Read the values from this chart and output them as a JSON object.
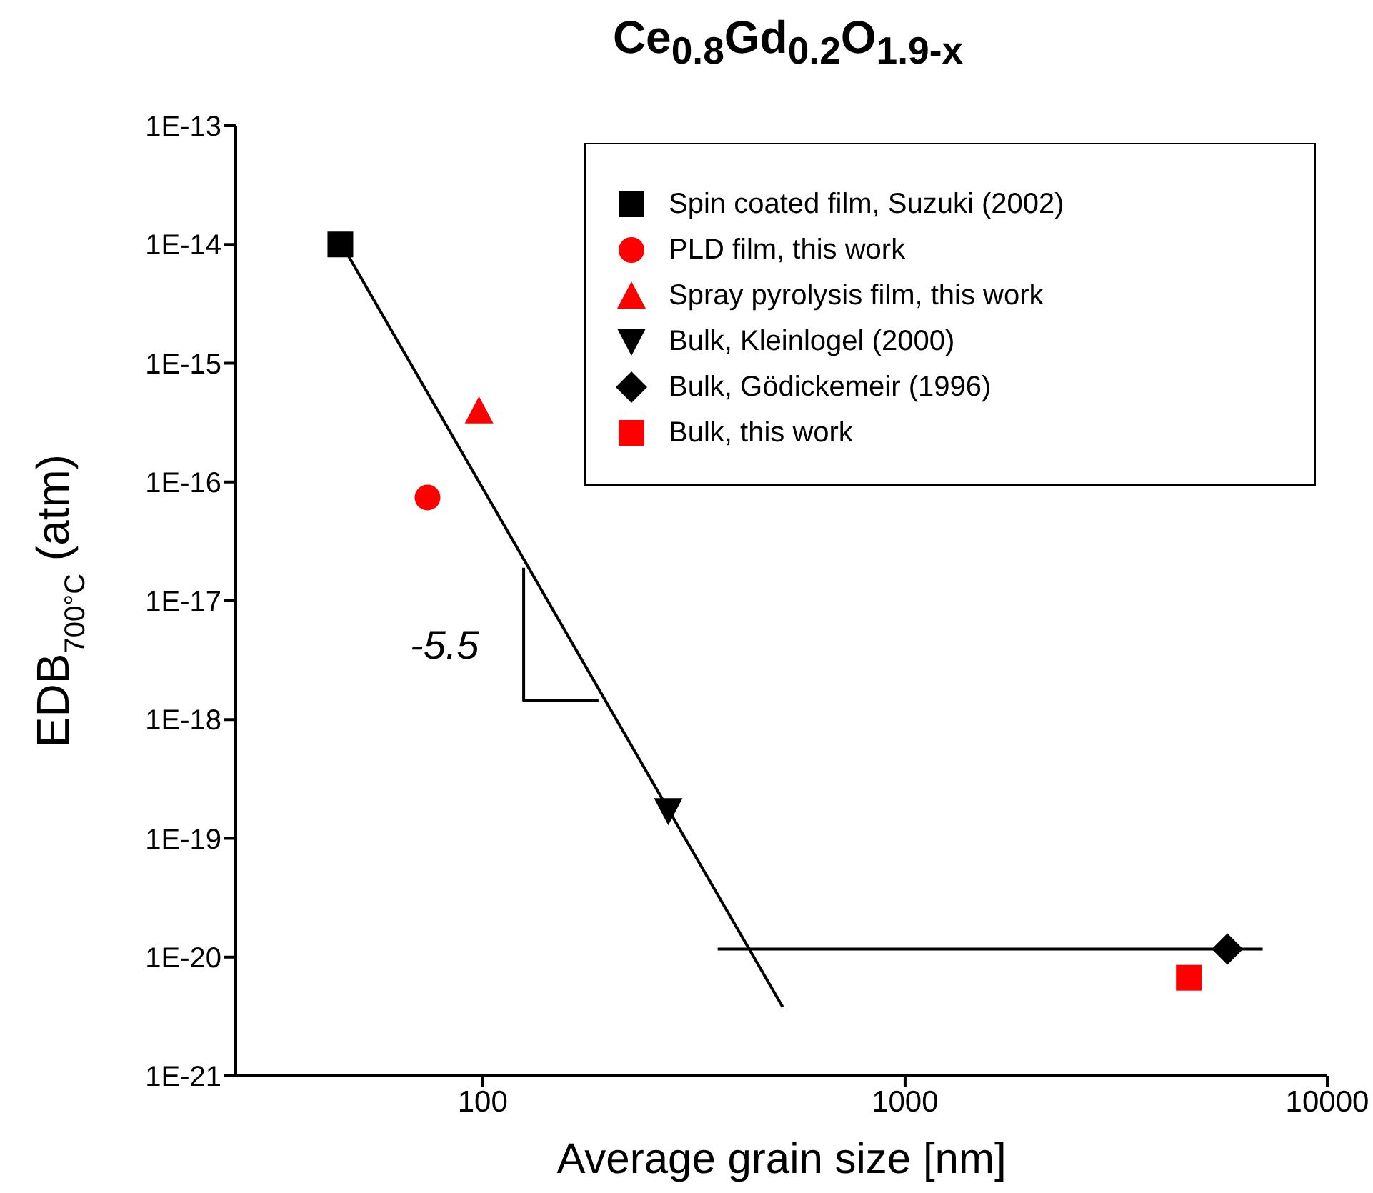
{
  "chart_data": {
    "type": "scatter",
    "title": "Ce$_{0.8}$Gd$_{0.2}$O$_{1.9-x}$",
    "xlabel": "Average grain size [nm]",
    "ylabel": "EDB$_{700°C}$ (atm)",
    "log": "xy",
    "legend": "top right",
    "xlim": [
      26,
      10000
    ],
    "xticks": [
      100,
      1000,
      10000
    ],
    "ylim": [
      1e-21,
      1e-13
    ],
    "yticks": [
      {
        "value": 1e-21,
        "label": "1E-21"
      },
      {
        "value": 1e-20,
        "label": "1E-20"
      },
      {
        "value": 1e-19,
        "label": "1E-19"
      },
      {
        "value": 1e-18,
        "label": "1E-18"
      },
      {
        "value": 1e-17,
        "label": "1E-17"
      },
      {
        "value": 1e-16,
        "label": "1E-16"
      },
      {
        "value": 1e-15,
        "label": "1E-15"
      },
      {
        "value": 1e-14,
        "label": "1E-14"
      },
      {
        "value": 1e-13,
        "label": "1E-13"
      }
    ],
    "annotations": [
      "-5.5"
    ],
    "series": [
      {
        "name": "Spin coated film, Suzuki (2002)",
        "color": "#000000",
        "marker": "square",
        "x": [
          46
        ],
        "values": [
          1e-14
        ]
      },
      {
        "name": "PLD film, this work",
        "color": "#ff0000",
        "marker": "circle",
        "x": [
          74
        ],
        "values": [
          7.4e-17
        ]
      },
      {
        "name": "Spray pyrolysis film, this work",
        "color": "#ff0000",
        "marker": "triangle",
        "x": [
          98
        ],
        "values": [
          4e-16
        ]
      },
      {
        "name": "Bulk, Kleinlogel (2000)",
        "color": "#000000",
        "marker": "triangle-down",
        "x": [
          275
        ],
        "values": [
          1.7e-19
        ]
      },
      {
        "name": "Bulk, Gödickemeir (1996)",
        "color": "#000000",
        "marker": "diamond",
        "x": [
          5800
        ],
        "values": [
          1.17e-20
        ]
      },
      {
        "name": "Bulk, this work",
        "color": "#ff0000",
        "marker": "square",
        "x": [
          4700
        ],
        "values": [
          6.7e-21
        ]
      },
      {
        "type": "line",
        "color": "#000000",
        "marker": "none",
        "x": [
          45,
          513
        ],
        "values": [
          1.2e-14,
          3.8e-21
        ]
      },
      {
        "type": "line",
        "color": "#000000",
        "marker": "none",
        "x": [
          360,
          7030
        ],
        "values": [
          1.17e-20,
          1.17e-20
        ]
      },
      {
        "type": "line",
        "color": "#000000",
        "marker": "none",
        "x": [
          125,
          125,
          188
        ],
        "values": [
          1.9e-17,
          1.45e-18,
          1.45e-18
        ]
      }
    ]
  }
}
